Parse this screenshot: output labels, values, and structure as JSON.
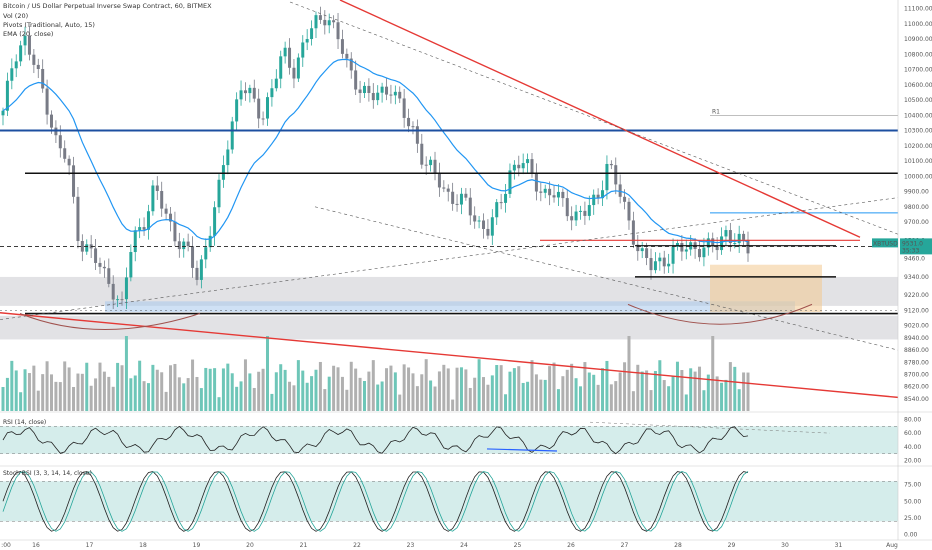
{
  "header": {
    "title": "Bitcoin / US Dollar Perpetual Inverse Swap Contract, 60, BITMEX",
    "indicators": [
      "Vol (20)",
      "Pivots (Traditional, Auto, 15)",
      "EMA (20, close)"
    ]
  },
  "price_badge": {
    "symbol": "XBTUSD",
    "price": "9531.0",
    "countdown": "35:33"
  },
  "rsi_label": "RSI (14, close)",
  "stoch_label": "Stoch RSI (3, 3, 14, 14, close)",
  "pivot_label": "R1",
  "colors": {
    "up": "#26a69a",
    "down": "#787b86",
    "ema": "#2196f3",
    "trend_red": "#e53935",
    "blue_level": "#1c4fa0",
    "volume_up": "#6ec6b8",
    "volume_down": "#b0b0b0",
    "rsi_band": "#b2dfdb"
  },
  "chart_data": [
    {
      "type": "candlestick",
      "title": "Bitcoin / US Dollar Perpetual Inverse Swap Contract, 60, BITMEX",
      "x_tick_labels": [
        ":00",
        "16",
        "17",
        "18",
        "19",
        "20",
        "21",
        "22",
        "23",
        "24",
        "25",
        "26",
        "27",
        "28",
        "29",
        "30",
        "31",
        "Aug"
      ],
      "y_tick_labels": [
        "11100.00",
        "11000.00",
        "10900.00",
        "10800.00",
        "10700.00",
        "10600.00",
        "10500.00",
        "10400.00",
        "10300.00",
        "10200.00",
        "10100.00",
        "10000.00",
        "9900.00",
        "9800.00",
        "9700.00",
        "9580.0",
        "9460.0",
        "9340.00",
        "9220.00",
        "9120.00",
        "9020.00",
        "8940.00",
        "8860.00",
        "8780.00",
        "8700.00",
        "8620.00",
        "8540.00"
      ],
      "ylim": [
        8500,
        11130
      ],
      "close_approx": [
        10400,
        10800,
        10900,
        10700,
        10500,
        10200,
        10100,
        9600,
        9500,
        9400,
        9300,
        9120,
        9600,
        9700,
        9900,
        9780,
        9600,
        9500,
        9350,
        9600,
        9900,
        10300,
        10600,
        10500,
        10400,
        10600,
        10800,
        10700,
        10900,
        11000,
        11080,
        10900,
        10700,
        10600,
        10500,
        10550,
        10600,
        10400,
        10300,
        10100,
        10000,
        9900,
        9850,
        9800,
        9700,
        9650,
        9800,
        10050,
        10100,
        10000,
        9900,
        9880,
        9800,
        9750,
        9760,
        9850,
        10100,
        9900,
        9700,
        9500,
        9400,
        9450,
        9500,
        9520,
        9550,
        9520,
        9530,
        9650,
        9560,
        9531
      ],
      "horizontal_levels": [
        10300,
        10020,
        9580,
        9540,
        9340,
        9100
      ],
      "last_price": 9531.0
    },
    {
      "type": "bar",
      "title": "Vol (20)",
      "y_tick_labels": []
    },
    {
      "type": "line",
      "title": "RSI (14, close)",
      "y_tick_labels": [
        "80.00",
        "60.00",
        "40.00",
        "20.00"
      ],
      "ylim": [
        15,
        85
      ],
      "band": [
        30,
        70
      ]
    },
    {
      "type": "line",
      "title": "Stoch RSI (3, 3, 14, 14, close)",
      "y_tick_labels": [
        "75.00",
        "50.00",
        "25.00",
        "0.00"
      ],
      "ylim": [
        -5,
        100
      ],
      "band": [
        20,
        80
      ]
    }
  ]
}
